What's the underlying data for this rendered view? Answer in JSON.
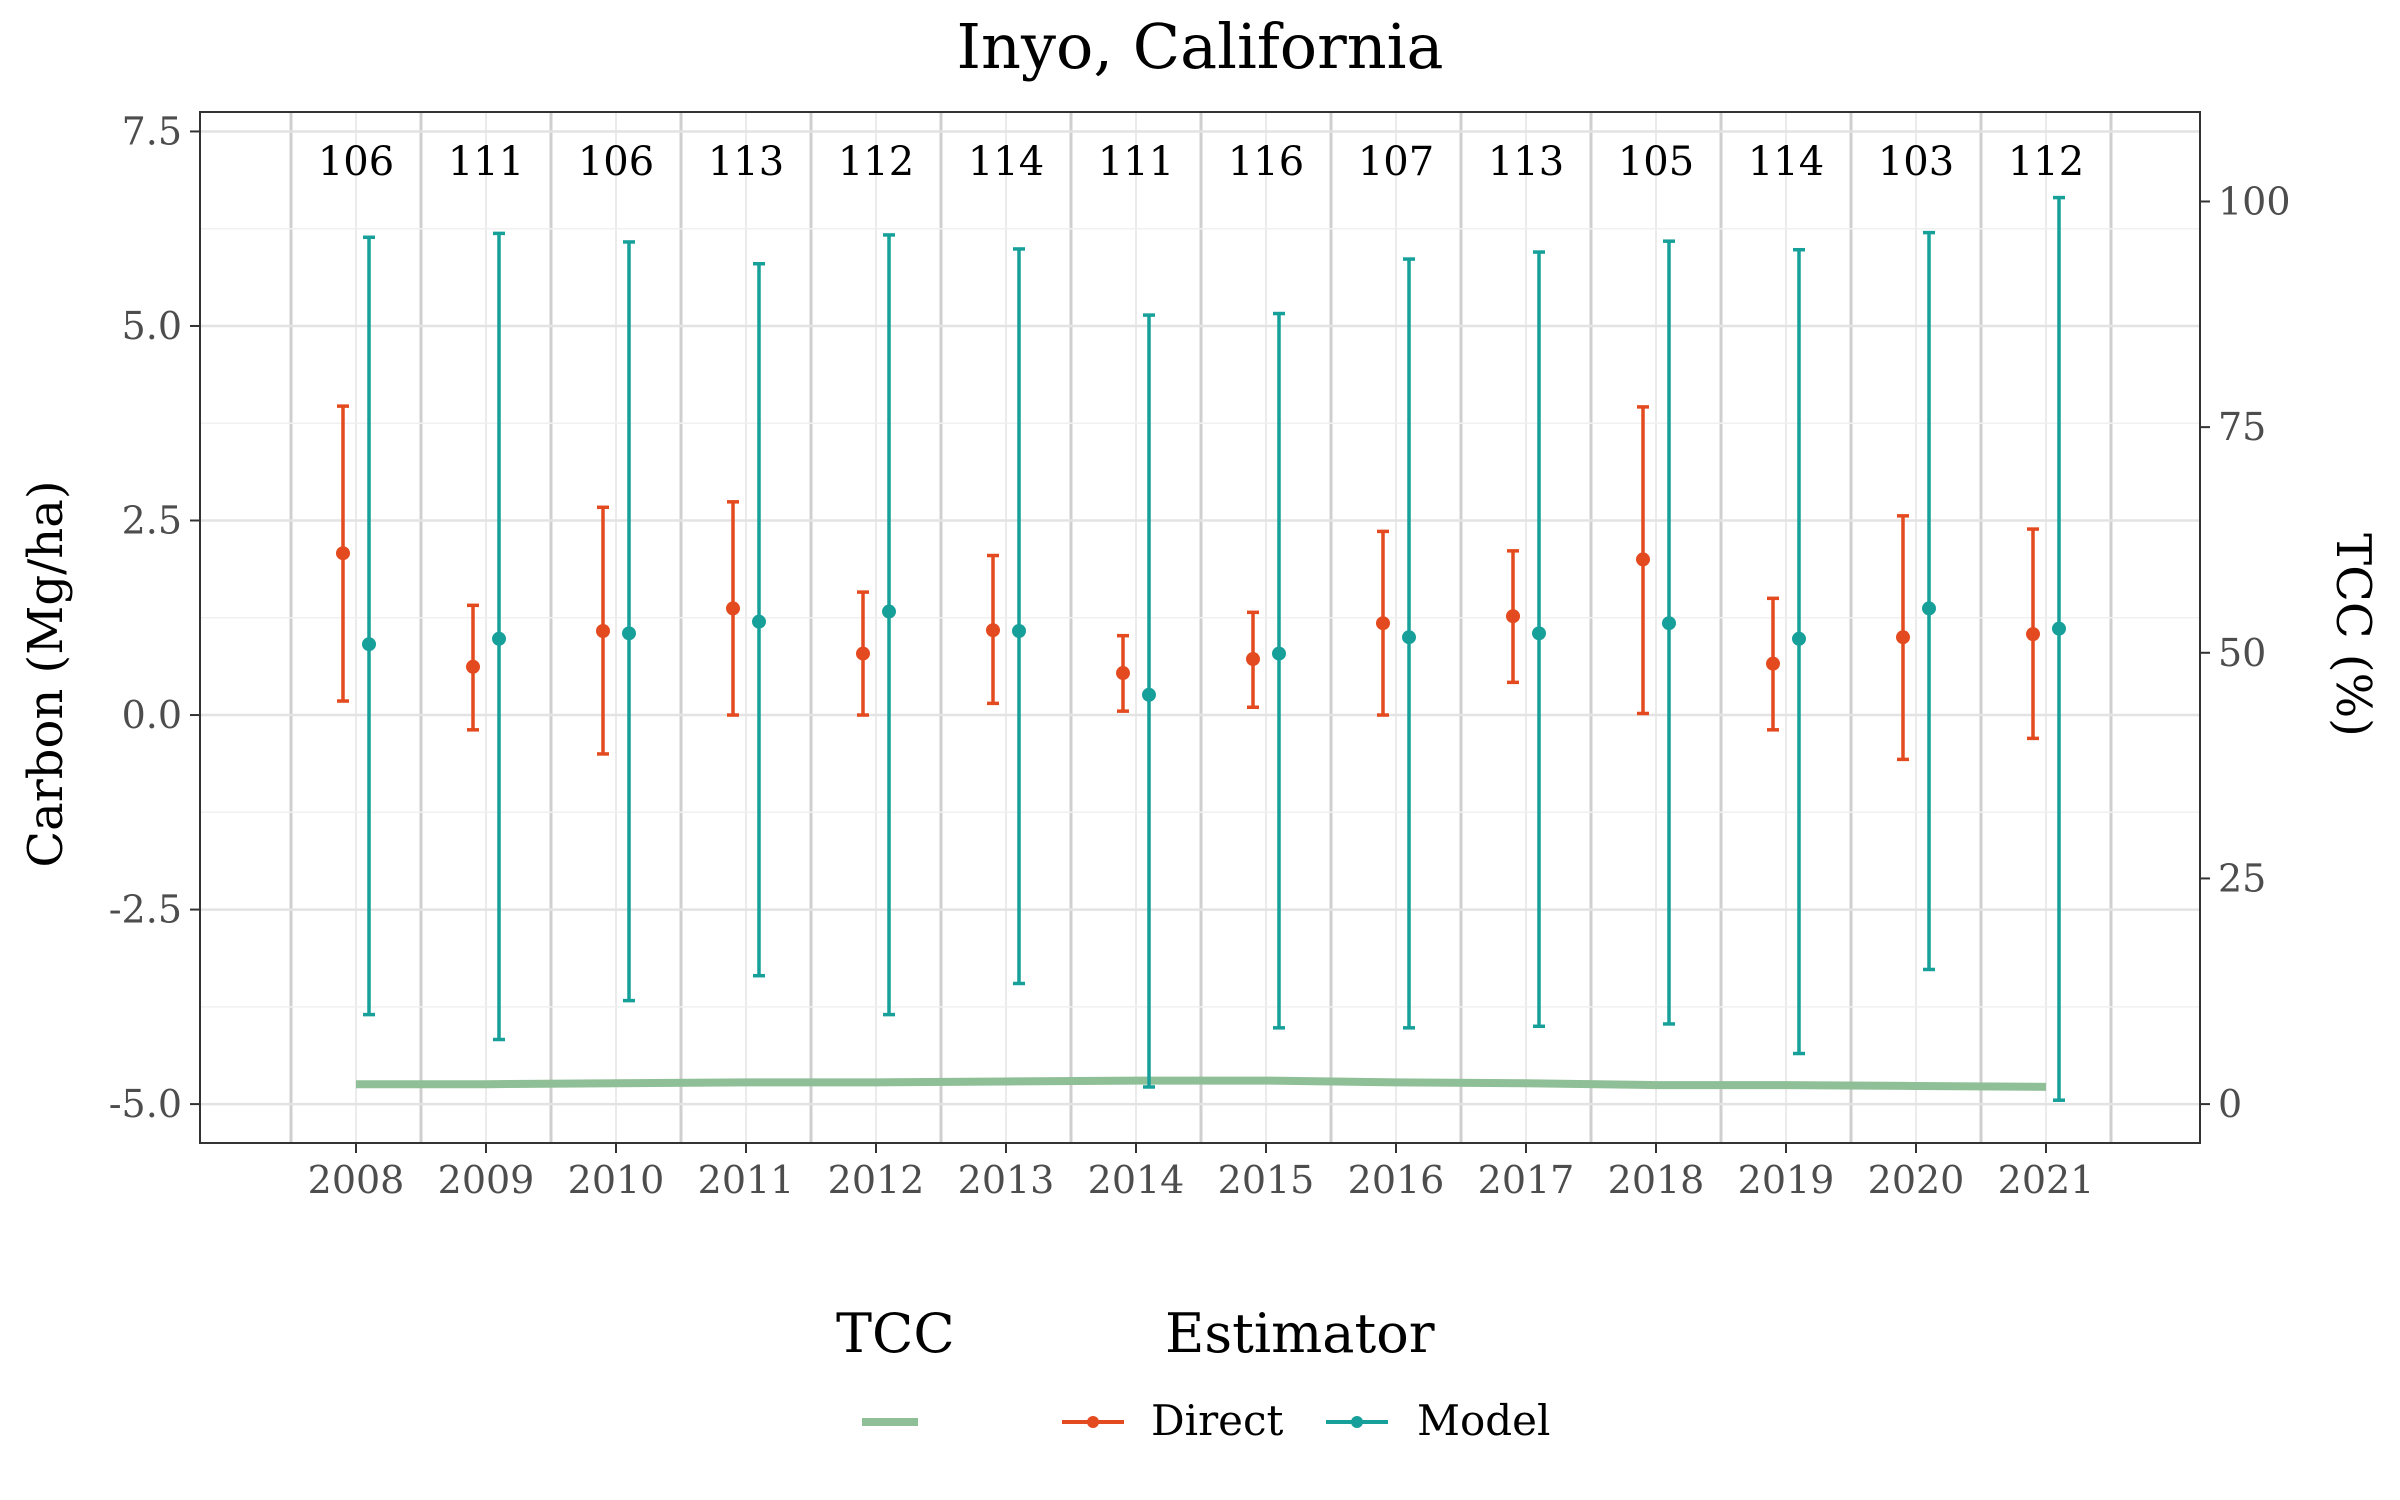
{
  "chart_data": {
    "type": "scatter",
    "title": "Inyo, California",
    "ylabel": "Carbon (Mg/ha)",
    "y2label": "TCC (%)",
    "xlabel": "",
    "ylim": [
      -5.5,
      7.75
    ],
    "y2lim": [
      -5.5,
      7.75
    ],
    "y2_scale": {
      "carbon_at_0_pct": -5.0,
      "carbon_per_100_pct": 11.6
    },
    "categories": [
      "2008",
      "2009",
      "2010",
      "2011",
      "2012",
      "2013",
      "2014",
      "2015",
      "2016",
      "2017",
      "2018",
      "2019",
      "2020",
      "2021"
    ],
    "y_ticks": [
      "7.5",
      "5.0",
      "2.5",
      "0.0",
      "-2.5",
      "-5.0"
    ],
    "y_tick_values": [
      7.5,
      5.0,
      2.5,
      0.0,
      -2.5,
      -5.0
    ],
    "y2_ticks": [
      "100",
      "75",
      "50",
      "25",
      "0"
    ],
    "y2_tick_values": [
      100,
      75,
      50,
      25,
      0
    ],
    "counts": [
      "106",
      "111",
      "106",
      "113",
      "112",
      "114",
      "111",
      "116",
      "107",
      "113",
      "105",
      "114",
      "103",
      "112"
    ],
    "grid": true,
    "legend_position": "bottom",
    "series": [
      {
        "name": "Direct",
        "color": "#e34a1f",
        "values": [
          2.08,
          0.62,
          1.08,
          1.37,
          0.79,
          1.09,
          0.54,
          0.72,
          1.18,
          1.27,
          2.0,
          0.66,
          1.0,
          1.04
        ],
        "lower": [
          0.18,
          -0.19,
          -0.5,
          0.0,
          0.0,
          0.15,
          0.05,
          0.1,
          0.0,
          0.42,
          0.02,
          -0.19,
          -0.57,
          -0.3
        ],
        "upper": [
          3.97,
          1.41,
          2.67,
          2.74,
          1.58,
          2.05,
          1.02,
          1.32,
          2.36,
          2.11,
          3.96,
          1.5,
          2.56,
          2.39
        ]
      },
      {
        "name": "Model",
        "color": "#17a09a",
        "values": [
          0.91,
          0.98,
          1.05,
          1.2,
          1.33,
          1.08,
          0.26,
          0.79,
          1.0,
          1.05,
          1.18,
          0.98,
          1.37,
          1.11
        ],
        "lower": [
          -3.85,
          -4.17,
          -3.67,
          -3.35,
          -3.85,
          -3.45,
          -4.78,
          -4.02,
          -4.02,
          -4.0,
          -3.97,
          -4.35,
          -3.27,
          -4.95
        ],
        "upper": [
          6.14,
          6.19,
          6.08,
          5.8,
          6.17,
          5.99,
          5.14,
          5.16,
          5.86,
          5.95,
          6.09,
          5.98,
          6.2,
          6.65
        ]
      }
    ],
    "tcc_line": {
      "name": "TCC",
      "color": "#8fbf96",
      "values": [
        2.2,
        2.2,
        2.3,
        2.4,
        2.4,
        2.5,
        2.6,
        2.6,
        2.4,
        2.3,
        2.1,
        2.1,
        2.0,
        1.9
      ]
    },
    "legend": {
      "tcc_title": "TCC",
      "estimator_title": "Estimator",
      "items": [
        "Direct",
        "Model"
      ]
    }
  }
}
